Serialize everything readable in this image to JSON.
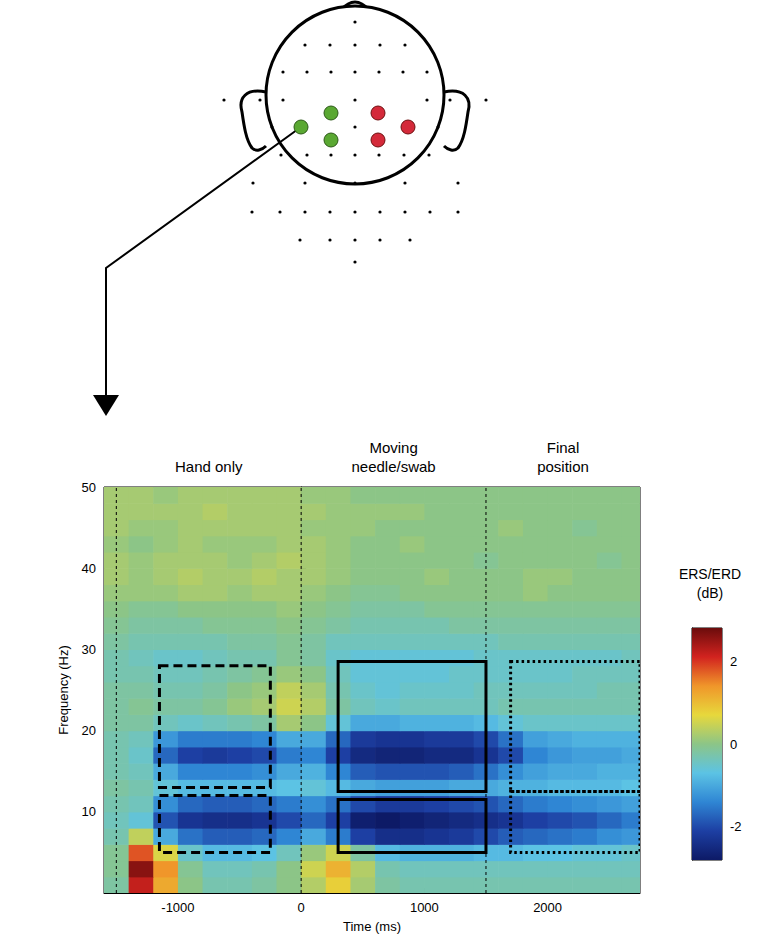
{
  "chart_data": {
    "type": "heatmap",
    "x_label": "Time (ms)",
    "y_label": "Frequency (Hz)",
    "xlim": [
      -1600,
      2750
    ],
    "xticks": [
      -1000,
      0,
      1000,
      2000
    ],
    "ylim": [
      0,
      50
    ],
    "yticks": [
      10,
      20,
      30,
      40,
      50
    ],
    "x": [
      -1500,
      -1300,
      -1100,
      -900,
      -700,
      -500,
      -300,
      -100,
      100,
      300,
      500,
      700,
      900,
      1100,
      1300,
      1500,
      1700,
      1900,
      2100,
      2300,
      2500,
      2700
    ],
    "y": [
      1,
      3,
      5,
      7,
      9,
      11,
      13,
      15,
      17,
      19,
      21,
      23,
      25,
      27,
      29,
      31,
      33,
      35,
      37,
      39,
      41,
      43,
      45,
      47,
      49
    ],
    "values": [
      [
        -0.2,
        2.2,
        1.2,
        0.0,
        -0.3,
        -0.3,
        -0.2,
        0.0,
        0.3,
        0.8,
        0.2,
        -0.2,
        -0.3,
        -0.3,
        -0.3,
        -0.3,
        -0.3,
        -0.3,
        -0.3,
        -0.3,
        -0.3,
        -0.3
      ],
      [
        -0.1,
        2.6,
        1.4,
        -0.1,
        -0.4,
        -0.4,
        -0.3,
        0.0,
        0.5,
        1.1,
        0.3,
        -0.3,
        -0.4,
        -0.4,
        -0.4,
        -0.4,
        -0.4,
        -0.4,
        -0.4,
        -0.4,
        -0.4,
        -0.4
      ],
      [
        -0.1,
        1.8,
        0.6,
        -0.5,
        -0.8,
        -0.8,
        -0.7,
        -0.4,
        0.1,
        0.5,
        -0.2,
        -0.8,
        -0.9,
        -0.9,
        -0.9,
        -0.8,
        -0.8,
        -0.7,
        -0.7,
        -0.6,
        -0.6,
        -0.5
      ],
      [
        -0.3,
        0.4,
        -1.0,
        -1.6,
        -1.8,
        -1.8,
        -1.7,
        -1.4,
        -1.0,
        -1.5,
        -2.1,
        -2.4,
        -2.4,
        -2.3,
        -2.2,
        -2.0,
        -1.8,
        -1.7,
        -1.6,
        -1.5,
        -1.3,
        -1.2
      ],
      [
        -0.4,
        -0.6,
        -1.9,
        -2.3,
        -2.4,
        -2.4,
        -2.3,
        -2.0,
        -1.7,
        -2.1,
        -2.7,
        -2.8,
        -2.7,
        -2.6,
        -2.5,
        -2.4,
        -2.3,
        -2.1,
        -2.0,
        -1.9,
        -1.7,
        -1.5
      ],
      [
        -0.3,
        -0.4,
        -1.3,
        -1.7,
        -1.8,
        -1.8,
        -1.7,
        -1.5,
        -1.3,
        -1.6,
        -2.0,
        -2.2,
        -2.2,
        -2.1,
        -2.0,
        -1.9,
        -1.7,
        -1.5,
        -1.4,
        -1.3,
        -1.2,
        -1.1
      ],
      [
        -0.2,
        -0.3,
        -0.6,
        -0.8,
        -0.8,
        -0.8,
        -0.8,
        -0.7,
        -0.6,
        -0.8,
        -1.0,
        -1.1,
        -1.1,
        -1.1,
        -1.0,
        -1.0,
        -0.9,
        -0.9,
        -0.8,
        -0.8,
        -0.8,
        -0.7
      ],
      [
        -0.3,
        -0.4,
        -1.0,
        -1.4,
        -1.4,
        -1.4,
        -1.3,
        -1.0,
        -0.9,
        -1.4,
        -1.8,
        -1.9,
        -1.9,
        -1.9,
        -1.8,
        -1.6,
        -1.3,
        -1.1,
        -1.0,
        -1.0,
        -0.9,
        -0.9
      ],
      [
        -0.3,
        -0.5,
        -1.7,
        -2.1,
        -2.2,
        -2.1,
        -2.0,
        -1.5,
        -1.4,
        -2.1,
        -2.5,
        -2.6,
        -2.6,
        -2.5,
        -2.5,
        -2.3,
        -2.0,
        -1.4,
        -1.2,
        -1.1,
        -1.1,
        -1.0
      ],
      [
        -0.3,
        -0.4,
        -1.2,
        -1.5,
        -1.5,
        -1.5,
        -1.4,
        -1.0,
        -1.0,
        -1.7,
        -2.2,
        -2.3,
        -2.3,
        -2.2,
        -2.2,
        -2.0,
        -1.6,
        -1.1,
        -1.0,
        -0.9,
        -0.9,
        -0.9
      ],
      [
        -0.2,
        -0.2,
        -0.4,
        -0.5,
        -0.4,
        -0.3,
        -0.2,
        0.2,
        0.0,
        -0.6,
        -1.0,
        -1.0,
        -0.9,
        -0.9,
        -0.9,
        -0.8,
        -0.6,
        -0.5,
        -0.5,
        -0.5,
        -0.5,
        -0.5
      ],
      [
        -0.2,
        -0.1,
        -0.2,
        -0.2,
        -0.1,
        0.1,
        0.2,
        0.5,
        0.3,
        -0.2,
        -0.4,
        -0.5,
        -0.4,
        -0.4,
        -0.4,
        -0.4,
        -0.3,
        -0.3,
        -0.3,
        -0.3,
        -0.3,
        -0.3
      ],
      [
        -0.2,
        -0.2,
        -0.3,
        -0.3,
        -0.2,
        0.0,
        0.1,
        0.4,
        0.2,
        -0.3,
        -0.5,
        -0.6,
        -0.5,
        -0.5,
        -0.5,
        -0.4,
        -0.4,
        -0.4,
        -0.4,
        -0.4,
        -0.3,
        -0.3
      ],
      [
        -0.3,
        -0.3,
        -0.4,
        -0.4,
        -0.3,
        -0.2,
        -0.1,
        0.1,
        0.0,
        -0.4,
        -0.6,
        -0.6,
        -0.6,
        -0.6,
        -0.5,
        -0.5,
        -0.5,
        -0.5,
        -0.5,
        -0.4,
        -0.4,
        -0.4
      ],
      [
        -0.3,
        -0.4,
        -0.5,
        -0.5,
        -0.4,
        -0.3,
        -0.3,
        -0.1,
        -0.2,
        -0.5,
        -0.6,
        -0.6,
        -0.6,
        -0.6,
        -0.6,
        -0.5,
        -0.5,
        -0.5,
        -0.5,
        -0.5,
        -0.5,
        -0.4
      ],
      [
        -0.2,
        -0.3,
        -0.3,
        -0.3,
        -0.3,
        -0.2,
        -0.2,
        -0.1,
        -0.2,
        -0.4,
        -0.4,
        -0.4,
        -0.4,
        -0.4,
        -0.4,
        -0.4,
        -0.3,
        -0.3,
        -0.3,
        -0.3,
        -0.3,
        -0.3
      ],
      [
        -0.1,
        -0.2,
        -0.2,
        -0.2,
        -0.1,
        -0.1,
        -0.1,
        0.0,
        -0.1,
        -0.2,
        -0.3,
        -0.3,
        -0.3,
        -0.3,
        -0.2,
        -0.2,
        -0.2,
        -0.2,
        -0.2,
        -0.2,
        -0.2,
        -0.2
      ],
      [
        0.0,
        -0.1,
        -0.1,
        0.0,
        0.0,
        0.0,
        0.0,
        0.1,
        0.0,
        -0.1,
        -0.2,
        -0.2,
        -0.2,
        -0.1,
        -0.1,
        -0.1,
        -0.1,
        -0.1,
        -0.1,
        -0.1,
        -0.1,
        -0.1
      ],
      [
        0.1,
        0.1,
        0.1,
        0.2,
        0.2,
        0.1,
        0.2,
        0.2,
        0.1,
        0.0,
        -0.1,
        -0.1,
        0.0,
        0.0,
        0.0,
        0.0,
        0.0,
        0.1,
        0.0,
        0.0,
        0.0,
        0.0
      ],
      [
        0.2,
        0.1,
        0.2,
        0.3,
        0.2,
        0.2,
        0.3,
        0.2,
        0.2,
        0.1,
        0.0,
        0.0,
        0.0,
        0.1,
        0.0,
        0.0,
        0.0,
        0.1,
        0.1,
        0.0,
        0.0,
        0.0
      ],
      [
        0.2,
        0.1,
        0.2,
        0.2,
        0.2,
        0.1,
        0.2,
        0.3,
        0.2,
        0.1,
        0.0,
        0.0,
        0.0,
        0.0,
        0.0,
        -0.1,
        0.0,
        0.0,
        0.0,
        0.0,
        -0.1,
        0.0
      ],
      [
        0.1,
        0.0,
        0.1,
        0.2,
        0.1,
        0.1,
        0.1,
        0.2,
        0.2,
        0.1,
        0.0,
        0.0,
        0.1,
        0.0,
        0.0,
        0.0,
        0.0,
        0.0,
        0.0,
        0.0,
        0.0,
        0.0
      ],
      [
        0.2,
        0.1,
        0.1,
        0.2,
        0.2,
        0.2,
        0.2,
        0.2,
        0.1,
        0.1,
        0.1,
        0.0,
        0.0,
        0.0,
        0.0,
        0.0,
        0.1,
        0.0,
        0.0,
        -0.1,
        0.0,
        0.0
      ],
      [
        0.2,
        0.2,
        0.2,
        0.2,
        0.3,
        0.2,
        0.2,
        0.2,
        0.2,
        0.1,
        0.1,
        0.1,
        0.1,
        0.0,
        0.0,
        0.0,
        0.0,
        0.0,
        0.0,
        0.0,
        0.0,
        0.0
      ],
      [
        0.2,
        0.2,
        0.1,
        0.2,
        0.2,
        0.2,
        0.2,
        0.2,
        0.1,
        0.1,
        0.0,
        0.0,
        0.0,
        0.0,
        0.0,
        0.0,
        0.0,
        0.0,
        0.0,
        0.0,
        0.0,
        0.0
      ]
    ],
    "color_label": "ERS/ERD\n(dB)",
    "color_range": [
      -2.8,
      2.8
    ],
    "color_ticks": [
      -2,
      0,
      2
    ],
    "vlines": [
      -1500,
      0,
      1500
    ],
    "annotations": [
      "Hand only",
      "Moving\nneedle/swab",
      "Final\nposition"
    ],
    "boxes": [
      {
        "x": [
          -1150,
          -250
        ],
        "y": [
          13,
          28
        ],
        "line_style": "dashed"
      },
      {
        "x": [
          -1150,
          -250
        ],
        "y": [
          5,
          12
        ],
        "line_style": "dashed"
      },
      {
        "x": [
          300,
          1500
        ],
        "y": [
          12.5,
          28.5
        ],
        "line_style": "solid"
      },
      {
        "x": [
          300,
          1500
        ],
        "y": [
          5,
          11.5
        ],
        "line_style": "solid"
      },
      {
        "x": [
          1700,
          2750
        ],
        "y": [
          12.5,
          28.5
        ],
        "line_style": "dotted"
      },
      {
        "x": [
          1700,
          2750
        ],
        "y": [
          5,
          12.5
        ],
        "line_style": "dotted"
      }
    ]
  }
}
